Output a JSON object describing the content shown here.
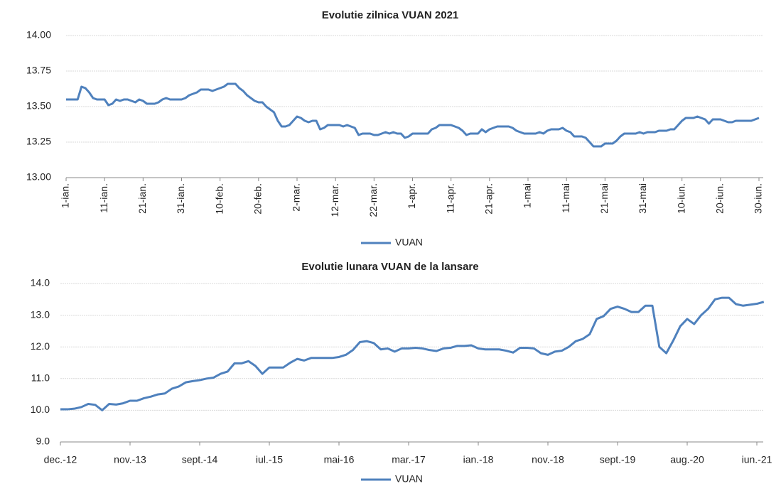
{
  "chart_data": [
    {
      "type": "line",
      "title": "Evolutie zilnica VUAN 2021",
      "categories": [
        "1-ian.",
        null,
        null,
        null,
        null,
        null,
        null,
        null,
        null,
        null,
        "11-ian.",
        null,
        null,
        null,
        null,
        null,
        null,
        null,
        null,
        null,
        "21-ian.",
        null,
        null,
        null,
        null,
        null,
        null,
        null,
        null,
        null,
        "31-ian.",
        null,
        null,
        null,
        null,
        null,
        null,
        null,
        null,
        null,
        "10-feb.",
        null,
        null,
        null,
        null,
        null,
        null,
        null,
        null,
        null,
        "20-feb.",
        null,
        null,
        null,
        null,
        null,
        null,
        null,
        null,
        null,
        "2-mar.",
        null,
        null,
        null,
        null,
        null,
        null,
        null,
        null,
        null,
        "12-mar.",
        null,
        null,
        null,
        null,
        null,
        null,
        null,
        null,
        null,
        "22-mar.",
        null,
        null,
        null,
        null,
        null,
        null,
        null,
        null,
        null,
        "1-apr.",
        null,
        null,
        null,
        null,
        null,
        null,
        null,
        null,
        null,
        "11-apr.",
        null,
        null,
        null,
        null,
        null,
        null,
        null,
        null,
        null,
        "21-apr.",
        null,
        null,
        null,
        null,
        null,
        null,
        null,
        null,
        null,
        "1-mai",
        null,
        null,
        null,
        null,
        null,
        null,
        null,
        null,
        null,
        "11-mai",
        null,
        null,
        null,
        null,
        null,
        null,
        null,
        null,
        null,
        "21-mai",
        null,
        null,
        null,
        null,
        null,
        null,
        null,
        null,
        null,
        "31-mai",
        null,
        null,
        null,
        null,
        null,
        null,
        null,
        null,
        null,
        "10-iun.",
        null,
        null,
        null,
        null,
        null,
        null,
        null,
        null,
        null,
        "20-iun.",
        null,
        null,
        null,
        null,
        null,
        null,
        null,
        null,
        null,
        "30-iun."
      ],
      "series": [
        {
          "name": "VUAN",
          "color": "#4f81bd",
          "values": [
            13.55,
            13.55,
            13.55,
            13.55,
            13.64,
            13.63,
            13.6,
            13.56,
            13.55,
            13.55,
            13.55,
            13.51,
            13.52,
            13.55,
            13.54,
            13.55,
            13.55,
            13.54,
            13.53,
            13.55,
            13.54,
            13.52,
            13.52,
            13.52,
            13.53,
            13.55,
            13.56,
            13.55,
            13.55,
            13.55,
            13.55,
            13.56,
            13.58,
            13.59,
            13.6,
            13.62,
            13.62,
            13.62,
            13.61,
            13.62,
            13.63,
            13.64,
            13.66,
            13.66,
            13.66,
            13.63,
            13.61,
            13.58,
            13.56,
            13.54,
            13.53,
            13.53,
            13.5,
            13.48,
            13.46,
            13.4,
            13.36,
            13.36,
            13.37,
            13.4,
            13.43,
            13.42,
            13.4,
            13.39,
            13.4,
            13.4,
            13.34,
            13.35,
            13.37,
            13.37,
            13.37,
            13.37,
            13.36,
            13.37,
            13.36,
            13.35,
            13.3,
            13.31,
            13.31,
            13.31,
            13.3,
            13.3,
            13.31,
            13.32,
            13.31,
            13.32,
            13.31,
            13.31,
            13.28,
            13.29,
            13.31,
            13.31,
            13.31,
            13.31,
            13.31,
            13.34,
            13.35,
            13.37,
            13.37,
            13.37,
            13.37,
            13.36,
            13.35,
            13.33,
            13.3,
            13.31,
            13.31,
            13.31,
            13.34,
            13.32,
            13.34,
            13.35,
            13.36,
            13.36,
            13.36,
            13.36,
            13.35,
            13.33,
            13.32,
            13.31,
            13.31,
            13.31,
            13.31,
            13.32,
            13.31,
            13.33,
            13.34,
            13.34,
            13.34,
            13.35,
            13.33,
            13.32,
            13.29,
            13.29,
            13.29,
            13.28,
            13.25,
            13.22,
            13.22,
            13.22,
            13.24,
            13.24,
            13.24,
            13.26,
            13.29,
            13.31,
            13.31,
            13.31,
            13.31,
            13.32,
            13.31,
            13.32,
            13.32,
            13.32,
            13.33,
            13.33,
            13.33,
            13.34,
            13.34,
            13.37,
            13.4,
            13.42,
            13.42,
            13.42,
            13.43,
            13.42,
            13.41,
            13.38,
            13.41,
            13.41,
            13.41,
            13.4,
            13.39,
            13.39,
            13.4,
            13.4,
            13.4,
            13.4,
            13.4,
            13.41,
            13.42
          ]
        }
      ],
      "ylim": [
        13,
        14
      ],
      "yticks": [
        {
          "value": 13,
          "label": "13.00"
        },
        {
          "value": 13.25,
          "label": "13.25"
        },
        {
          "value": 13.5,
          "label": "13.50"
        },
        {
          "value": 13.75,
          "label": "13.75"
        },
        {
          "value": 14,
          "label": "14.00"
        }
      ],
      "grid": true,
      "legend": "bottom"
    },
    {
      "type": "line",
      "title": "Evolutie lunara VUAN de la lansare",
      "categories": [
        "dec.-12",
        null,
        null,
        null,
        null,
        null,
        null,
        null,
        null,
        null,
        "nov.-13",
        null,
        null,
        null,
        null,
        null,
        null,
        null,
        null,
        null,
        "sept.-14",
        null,
        null,
        null,
        null,
        null,
        null,
        null,
        null,
        null,
        "iul.-15",
        null,
        null,
        null,
        null,
        null,
        null,
        null,
        null,
        null,
        "mai-16",
        null,
        null,
        null,
        null,
        null,
        null,
        null,
        null,
        null,
        "mar.-17",
        null,
        null,
        null,
        null,
        null,
        null,
        null,
        null,
        null,
        "ian.-18",
        null,
        null,
        null,
        null,
        null,
        null,
        null,
        null,
        null,
        "nov.-18",
        null,
        null,
        null,
        null,
        null,
        null,
        null,
        null,
        null,
        "sept.-19",
        null,
        null,
        null,
        null,
        null,
        null,
        null,
        null,
        null,
        "aug.-20",
        null,
        null,
        null,
        null,
        null,
        null,
        null,
        null,
        null,
        "iun.-21",
        null
      ],
      "series": [
        {
          "name": "VUAN",
          "color": "#4f81bd",
          "values": [
            10.03,
            10.03,
            10.05,
            10.1,
            10.2,
            10.17,
            10.0,
            10.2,
            10.18,
            10.22,
            10.3,
            10.3,
            10.38,
            10.43,
            10.5,
            10.53,
            10.68,
            10.75,
            10.88,
            10.92,
            10.95,
            11.0,
            11.03,
            11.15,
            11.22,
            11.48,
            11.48,
            11.55,
            11.4,
            11.15,
            11.35,
            11.35,
            11.35,
            11.5,
            11.62,
            11.57,
            11.65,
            11.65,
            11.65,
            11.65,
            11.68,
            11.75,
            11.9,
            12.15,
            12.18,
            12.12,
            11.92,
            11.95,
            11.85,
            11.95,
            11.95,
            11.97,
            11.95,
            11.9,
            11.87,
            11.95,
            11.97,
            12.03,
            12.03,
            12.05,
            11.95,
            11.92,
            11.92,
            11.92,
            11.88,
            11.82,
            11.97,
            11.97,
            11.95,
            11.8,
            11.75,
            11.85,
            11.88,
            12.0,
            12.18,
            12.25,
            12.4,
            12.88,
            12.97,
            13.2,
            13.27,
            13.2,
            13.1,
            13.1,
            13.3,
            13.3,
            12.0,
            11.8,
            12.2,
            12.65,
            12.88,
            12.72,
            13.0,
            13.2,
            13.5,
            13.55,
            13.55,
            13.35,
            13.3,
            13.33,
            13.36,
            13.42
          ]
        }
      ],
      "ylim": [
        9,
        14
      ],
      "yticks": [
        {
          "value": 9,
          "label": "9.0"
        },
        {
          "value": 10,
          "label": "10.0"
        },
        {
          "value": 11,
          "label": "11.0"
        },
        {
          "value": 12,
          "label": "12.0"
        },
        {
          "value": 13,
          "label": "13.0"
        },
        {
          "value": 14,
          "label": "14.0"
        }
      ],
      "grid": true,
      "legend": "bottom"
    }
  ]
}
